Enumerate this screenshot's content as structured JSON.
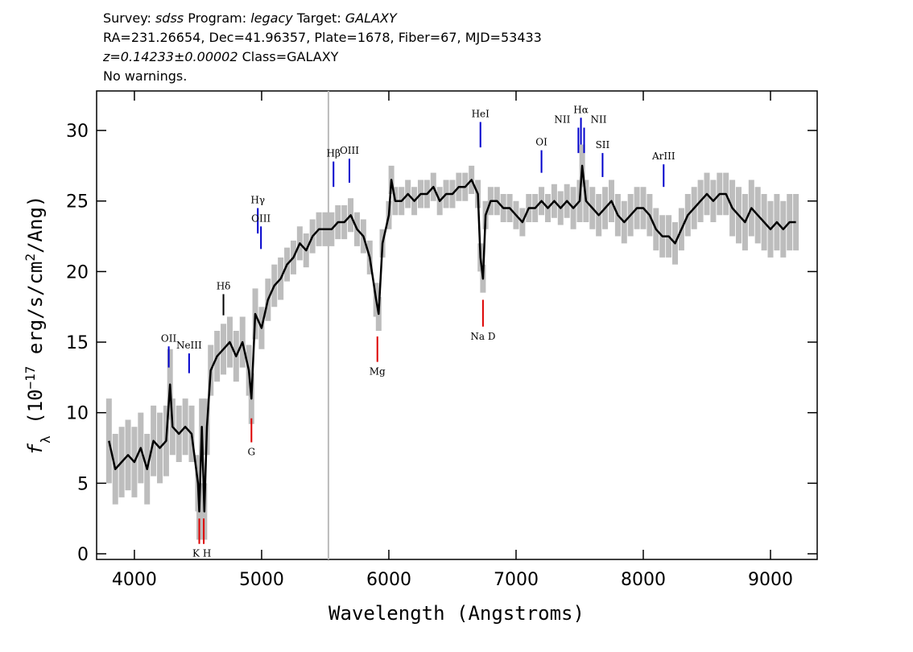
{
  "header": [
    [
      {
        "text": "Survey: "
      },
      {
        "text": "sdss",
        "italic": true
      },
      {
        "text": " Program: "
      },
      {
        "text": "legacy",
        "italic": true
      },
      {
        "text": " Target: "
      },
      {
        "text": "GALAXY",
        "italic": true
      }
    ],
    [
      {
        "text": "RA=231.26654, Dec=41.96357, Plate=1678, Fiber=67, MJD=53433"
      }
    ],
    [
      {
        "text": "z=0.14233±0.00002",
        "italic": true
      },
      {
        "text": " Class=GALAXY"
      }
    ],
    [
      {
        "text": "No warnings."
      }
    ]
  ],
  "chart_data": {
    "type": "line",
    "xlabel": "Wavelength (Angstroms)",
    "ylabel": [
      {
        "text": "f",
        "style": "italic"
      },
      {
        "text": "λ",
        "style": "sub"
      },
      {
        "text": " (10"
      },
      {
        "text": "−17",
        "style": "sup"
      },
      {
        "text": " erg/s/cm"
      },
      {
        "text": "2",
        "style": "sup"
      },
      {
        "text": "/Ang)"
      }
    ],
    "xlim": [
      3703,
      9367
    ],
    "ylim": [
      -0.4,
      32.8
    ],
    "xticks": [
      4000,
      5000,
      6000,
      7000,
      8000,
      9000
    ],
    "yticks": [
      0,
      5,
      10,
      15,
      20,
      25,
      30
    ],
    "color": "#000000",
    "error_color": "#bdbdbd",
    "x": [
      3800,
      3850,
      3900,
      3950,
      4000,
      4050,
      4100,
      4150,
      4200,
      4250,
      4280,
      4300,
      4350,
      4400,
      4450,
      4500,
      4510,
      4530,
      4550,
      4570,
      4600,
      4650,
      4700,
      4750,
      4800,
      4850,
      4900,
      4920,
      4950,
      5000,
      5050,
      5100,
      5150,
      5200,
      5250,
      5300,
      5350,
      5400,
      5450,
      5500,
      5550,
      5600,
      5650,
      5700,
      5750,
      5800,
      5850,
      5900,
      5920,
      5950,
      6000,
      6020,
      6050,
      6100,
      6150,
      6200,
      6250,
      6300,
      6350,
      6400,
      6450,
      6500,
      6550,
      6600,
      6650,
      6700,
      6720,
      6740,
      6760,
      6800,
      6850,
      6900,
      6950,
      7000,
      7050,
      7100,
      7150,
      7200,
      7250,
      7300,
      7350,
      7400,
      7450,
      7500,
      7520,
      7550,
      7600,
      7650,
      7700,
      7750,
      7800,
      7850,
      7900,
      7950,
      8000,
      8050,
      8100,
      8150,
      8200,
      8250,
      8300,
      8350,
      8400,
      8450,
      8500,
      8550,
      8600,
      8650,
      8700,
      8750,
      8800,
      8850,
      8900,
      8950,
      9000,
      9050,
      9100,
      9150,
      9200
    ],
    "values": [
      8,
      6,
      6.5,
      7,
      6.5,
      7.5,
      6,
      8,
      7.5,
      8,
      12,
      9,
      8.5,
      9,
      8.5,
      5,
      3,
      9,
      3,
      9,
      13,
      14,
      14.5,
      15,
      14,
      15,
      13,
      11,
      17,
      16,
      18,
      19,
      19.5,
      20.5,
      21,
      22,
      21.5,
      22.5,
      23,
      23,
      23,
      23.5,
      23.5,
      24,
      23,
      22.5,
      21,
      18,
      17,
      22,
      24,
      26.5,
      25,
      25,
      25.5,
      25,
      25.5,
      25.5,
      26,
      25,
      25.5,
      25.5,
      26,
      26,
      26.5,
      25.5,
      21,
      19.5,
      24,
      25,
      25,
      24.5,
      24.5,
      24,
      23.5,
      24.5,
      24.5,
      25,
      24.5,
      25,
      24.5,
      25,
      24.5,
      25,
      27.5,
      25,
      24.5,
      24,
      24.5,
      25,
      24,
      23.5,
      24,
      24.5,
      24.5,
      24,
      23,
      22.5,
      22.5,
      22,
      23,
      24,
      24.5,
      25,
      25.5,
      25,
      25.5,
      25.5,
      24.5,
      24,
      23.5,
      24.5,
      24,
      23.5,
      23,
      23.5,
      23,
      23.5,
      23.5
    ],
    "error": [
      3,
      2.5,
      2.5,
      2.5,
      2.5,
      2.5,
      2.5,
      2.5,
      2.5,
      2.5,
      2.5,
      2,
      2,
      2,
      2,
      2,
      2,
      2,
      2,
      2,
      1.8,
      1.8,
      1.8,
      1.8,
      1.8,
      1.8,
      1.8,
      1.8,
      1.8,
      1.5,
      1.5,
      1.5,
      1.5,
      1.2,
      1.2,
      1.2,
      1.2,
      1.2,
      1.2,
      1.2,
      1.2,
      1.2,
      1.2,
      1.2,
      1.2,
      1.2,
      1.2,
      1.2,
      1.2,
      1,
      1,
      1,
      1,
      1,
      1,
      1,
      1,
      1,
      1,
      1,
      1,
      1,
      1,
      1,
      1,
      1,
      1,
      1,
      1,
      1,
      1,
      1,
      1,
      1,
      1,
      1,
      1,
      1,
      1,
      1.2,
      1.2,
      1.2,
      1.5,
      1.5,
      1.5,
      1.5,
      1.5,
      1.5,
      1.5,
      1.5,
      1.5,
      1.5,
      1.5,
      1.5,
      1.5,
      1.5,
      1.5,
      1.5,
      1.5,
      1.5,
      1.5,
      1.5,
      1.5,
      1.5,
      1.5,
      1.5,
      1.5,
      1.5,
      2,
      2,
      2,
      2,
      2,
      2,
      2,
      2,
      2,
      2,
      2
    ],
    "sky_line": {
      "x": 5525,
      "color": "#bbbbbb"
    },
    "lines": [
      {
        "label": "OII",
        "x": 4270,
        "y": [
          13.2,
          14.7
        ],
        "color": "#0000cc"
      },
      {
        "label": "NeIII",
        "x": 4430,
        "y": [
          12.8,
          14.2
        ],
        "color": "#0000cc"
      },
      {
        "label": "Hδ",
        "x": 4700,
        "y": [
          16.9,
          18.4
        ],
        "color": "#000000"
      },
      {
        "label": "Hγ",
        "x": 4970,
        "y": [
          22.7,
          24.5
        ],
        "color": "#0000cc"
      },
      {
        "label": "OIII",
        "x": 4995,
        "y": [
          21.6,
          23.2
        ],
        "color": "#0000cc"
      },
      {
        "label": "Hβ",
        "x": 5565,
        "y": [
          26,
          27.8
        ],
        "color": "#0000cc"
      },
      {
        "label": "OIII",
        "x": 5690,
        "y": [
          26.3,
          28
        ],
        "color": "#0000cc"
      },
      {
        "label": "HeI",
        "x": 6720,
        "y": [
          28.8,
          30.6
        ],
        "color": "#0000cc"
      },
      {
        "label": "OI",
        "x": 7200,
        "y": [
          27,
          28.6
        ],
        "color": "#0000cc"
      },
      {
        "label": "NII",
        "x": 7490,
        "y": [
          28.4,
          30.2
        ],
        "color": "#0000cc"
      },
      {
        "label": "Hα",
        "x": 7510,
        "y": [
          29,
          30.9
        ],
        "color": "#0000cc"
      },
      {
        "label": "NII",
        "x": 7535,
        "y": [
          28.4,
          30.2
        ],
        "color": "#0000cc"
      },
      {
        "label": "SII",
        "x": 7680,
        "y": [
          26.7,
          28.4
        ],
        "color": "#0000cc"
      },
      {
        "label": "ArIII",
        "x": 8160,
        "y": [
          26,
          27.6
        ],
        "color": "#0000cc"
      },
      {
        "label": "K",
        "x": 4510,
        "y": [
          0.7,
          2.5
        ],
        "color": "#dd0000"
      },
      {
        "label": "H",
        "x": 4545,
        "y": [
          0.7,
          2.5
        ],
        "color": "#dd0000"
      },
      {
        "label": "G",
        "x": 4920,
        "y": [
          7.9,
          9.6
        ],
        "color": "#dd0000"
      },
      {
        "label": "Mg",
        "x": 5910,
        "y": [
          13.6,
          15.4
        ],
        "color": "#dd0000"
      },
      {
        "label": "Na D",
        "x": 6740,
        "y": [
          16.1,
          18
        ],
        "color": "#dd0000"
      }
    ]
  }
}
